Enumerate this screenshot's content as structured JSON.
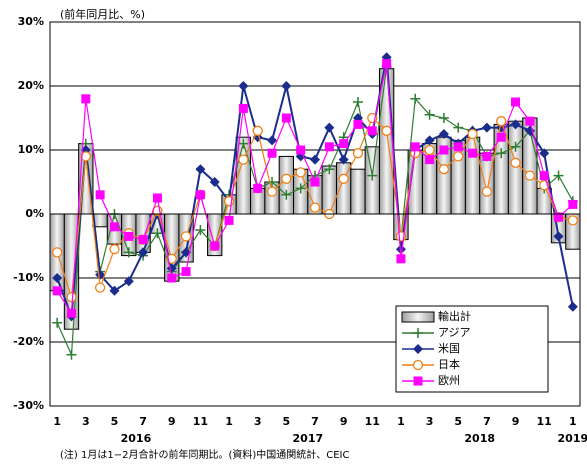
{
  "chart_data": {
    "type": "bar_line",
    "axis_label": "(前年同月比、%)",
    "note": "(注) 1月は1−2月合計の前年同期比。(資料)中国通関統計、CEIC",
    "categories": [
      "1",
      null,
      "3",
      null,
      "5",
      null,
      "7",
      null,
      "9",
      null,
      "11",
      null,
      "1",
      null,
      "3",
      null,
      "5",
      null,
      "7",
      null,
      "9",
      null,
      "11",
      null,
      "1",
      null,
      "3",
      null,
      "5",
      null,
      "7",
      null,
      "9",
      null,
      "11",
      null,
      "1"
    ],
    "years": [
      "2016",
      "2017",
      "2018",
      "2019"
    ],
    "ylim": [
      -30,
      30
    ],
    "yticks": [
      {
        "value": -30,
        "label": "-30%"
      },
      {
        "value": -20,
        "label": "-20%"
      },
      {
        "value": -10,
        "label": "-10%"
      },
      {
        "value": 0,
        "label": "0%"
      },
      {
        "value": 10,
        "label": "10%"
      },
      {
        "value": 20,
        "label": "20%"
      },
      {
        "value": 30,
        "label": "30%"
      }
    ],
    "grid": true,
    "legend": "lower right",
    "series": [
      {
        "name": "輸出計",
        "type": "bar",
        "color": "#d9d9d9",
        "values": [
          -12,
          -18,
          11,
          -2,
          -4.7,
          -6.5,
          -6,
          -3,
          -10.5,
          -7.5,
          0,
          -6.5,
          3,
          12,
          4,
          5,
          9,
          7,
          6,
          7.5,
          8,
          7,
          10.5,
          22.7,
          -4,
          10,
          11,
          12,
          11.5,
          12,
          9.5,
          14,
          14.5,
          15,
          4,
          -4.5,
          -5.5
        ]
      },
      {
        "name": "アジア",
        "type": "line",
        "marker": "plus",
        "color": "#2e7d32",
        "values": [
          -17,
          -22,
          11,
          -9,
          0,
          -6,
          -6.5,
          -3,
          -9,
          -6,
          -2.5,
          -5,
          3,
          11,
          4,
          5,
          3,
          4,
          6,
          7,
          12,
          17.5,
          6,
          23,
          -4,
          18,
          15.5,
          15,
          13.5,
          13,
          9,
          9.5,
          10.5,
          13,
          4,
          6,
          2
        ]
      },
      {
        "name": "米国",
        "type": "line",
        "marker": "diamond",
        "color": "#1a2d8c",
        "values": [
          -10,
          -16,
          10,
          -9.5,
          -12,
          -10.5,
          -6,
          0,
          -8.5,
          -6,
          7,
          5,
          2,
          20,
          12,
          11.5,
          20,
          9,
          8.5,
          13.5,
          8.5,
          15,
          12.5,
          24.5,
          -5.5,
          10,
          11.5,
          12.5,
          11,
          13,
          13.5,
          13.5,
          14,
          13,
          9.5,
          -3.5,
          -14.5
        ]
      },
      {
        "name": "日本",
        "type": "line",
        "marker": "circle",
        "color": "#f07f16",
        "values": [
          -6,
          -13,
          9,
          -11.5,
          -5.5,
          -3,
          -4,
          0.5,
          -7,
          -3.5,
          3,
          -5,
          2,
          8.5,
          13,
          3.5,
          5.5,
          6.5,
          1,
          0,
          5.5,
          9.5,
          15,
          13,
          -3.5,
          9.5,
          10,
          7,
          9,
          12.5,
          3.5,
          14.5,
          8,
          6,
          4.5,
          -0.5,
          -1
        ]
      },
      {
        "name": "欧州",
        "type": "line",
        "marker": "square",
        "color": "#ff00ff",
        "values": [
          -12,
          -15.5,
          18,
          3,
          -2,
          -3.5,
          -4,
          2.5,
          -10,
          -9,
          3,
          -5,
          -1,
          16.5,
          4,
          9.5,
          15,
          10,
          5,
          10.5,
          11,
          14,
          13,
          23.5,
          -7,
          10.5,
          8.5,
          10,
          10.5,
          9.5,
          9,
          12,
          17.5,
          14.5,
          6,
          -0.5,
          1.5
        ]
      }
    ]
  }
}
